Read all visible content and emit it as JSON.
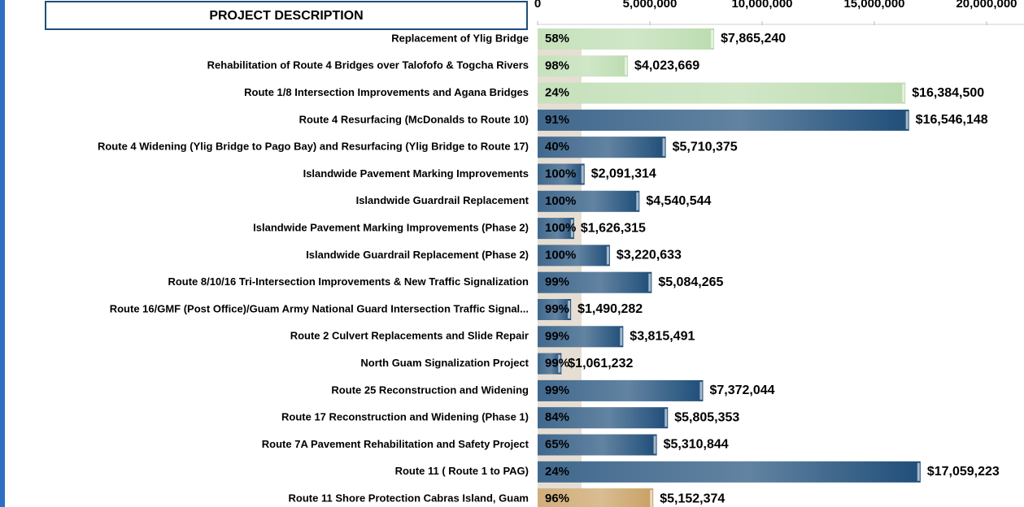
{
  "chart_data": {
    "type": "bar",
    "orientation": "horizontal",
    "header": "PROJECT DESCRIPTION",
    "categories": [
      "Replacement of Ylig Bridge",
      "Rehabilitation of Route 4 Bridges over Talofofo & Togcha Rivers",
      "Route 1/8 Intersection Improvements and Agana Bridges",
      "Route 4 Resurfacing (McDonalds to Route 10)",
      "Route 4 Widening (Ylig Bridge to Pago Bay) and Resurfacing (Ylig Bridge to Route 17)",
      "Islandwide Pavement Marking Improvements",
      "Islandwide Guardrail Replacement",
      "Islandwide Pavement Marking Improvements (Phase 2)",
      "Islandwide Guardrail Replacement (Phase 2)",
      "Route 8/10/16 Tri-Intersection Improvements & New Traffic Signalization",
      "Route 16/GMF (Post Office)/Guam Army National Guard Intersection Traffic Signal...",
      "Route 2 Culvert Replacements and Slide Repair",
      "North Guam Signalization Project",
      "Route 25 Reconstruction and Widening",
      "Route 17 Reconstruction and Widening (Phase 1)",
      "Route 7A Pavement Rehabilitation and Safety Project",
      "Route 11 ( Route 1 to PAG)",
      "Route 11 Shore Protection Cabras Island, Guam"
    ],
    "percent_complete": [
      "58%",
      "98%",
      "24%",
      "91%",
      "40%",
      "100%",
      "100%",
      "100%",
      "100%",
      "99%",
      "99%",
      "99%",
      "99%",
      "99%",
      "84%",
      "65%",
      "24%",
      "96%"
    ],
    "values": [
      7865240,
      4023669,
      16384500,
      16546148,
      5710375,
      2091314,
      4540544,
      1626315,
      3220633,
      5084265,
      1490282,
      3815491,
      1061232,
      7372044,
      5805353,
      5310844,
      17059223,
      5152374
    ],
    "value_labels": [
      "$7,865,240",
      "$4,023,669",
      "$16,384,500",
      "$16,546,148",
      "$5,710,375",
      "$2,091,314",
      "$4,540,544",
      "$1,626,315",
      "$3,220,633",
      "$5,084,265",
      "$1,490,282",
      "$3,815,491",
      "$1,061,232",
      "$7,372,044",
      "$5,805,353",
      "$5,310,844",
      "$17,059,223",
      "$5,152,374"
    ],
    "colors": [
      "#bcdcb0",
      "#bcdcb0",
      "#bcdcb0",
      "#1f4e79",
      "#1f4e79",
      "#1f4e79",
      "#1f4e79",
      "#1f4e79",
      "#1f4e79",
      "#1f4e79",
      "#1f4e79",
      "#1f4e79",
      "#1f4e79",
      "#1f4e79",
      "#1f4e79",
      "#1f4e79",
      "#1f4e79",
      "#c9a063"
    ],
    "xlim": [
      0,
      20000000
    ],
    "xticks": [
      0,
      {
        "value": 5000000,
        "label": "5,000,000"
      },
      {
        "value": 10000000,
        "label": "10,000,000"
      },
      {
        "value": 15000000,
        "label": "15,000,000"
      },
      {
        "value": 20000000,
        "label": "20,000,000"
      }
    ]
  }
}
